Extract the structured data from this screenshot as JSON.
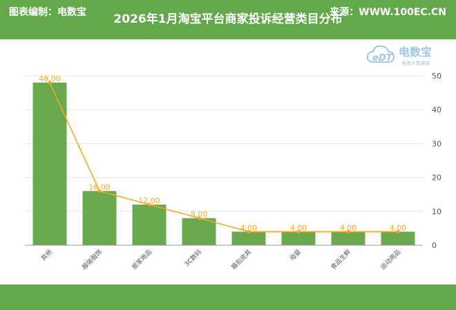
{
  "title": "2026年1月淘宝平台商家投诉经营类目分布",
  "footer": {
    "left": "图表编制：电数宝",
    "right": "来源：WWW.100EC.CN"
  },
  "logo": {
    "mark": "eDT",
    "name": "电数宝",
    "tagline": "电商大数据库"
  },
  "colors": {
    "header": "#63a84a",
    "bar": "#6aa84f",
    "line": "#f5a623",
    "label": "#f5a623"
  },
  "chart_data": {
    "type": "bar",
    "categories": [
      "其他",
      "服装服饰",
      "居家用品",
      "3C数码",
      "箱包皮具",
      "母婴",
      "食品生鲜",
      "运动用品"
    ],
    "values": [
      48.0,
      16.0,
      12.0,
      8.0,
      4.0,
      4.0,
      4.0,
      4.0
    ],
    "data_labels": [
      "48.00",
      "16.00",
      "12.00",
      "8.00",
      "4.00",
      "4.00",
      "4.00",
      "4.00"
    ],
    "y_ticks": [
      "0",
      "10",
      "20",
      "30",
      "40",
      "50"
    ],
    "ylim": [
      0,
      50
    ],
    "overlay_line": true,
    "grid": true
  }
}
